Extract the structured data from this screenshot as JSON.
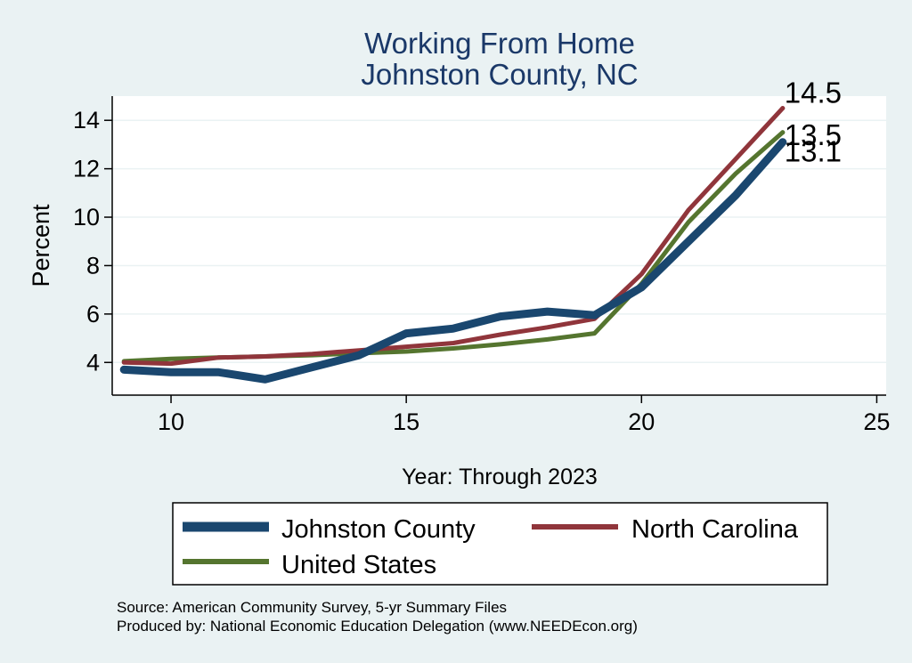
{
  "chart_data": {
    "type": "line",
    "title": [
      "Working From Home",
      "Johnston County, NC"
    ],
    "xlabel": "Year: Through 2023",
    "ylabel": "Percent",
    "xlim": [
      8.75,
      25.2
    ],
    "ylim": [
      2.65,
      15.0
    ],
    "xticks": [
      10,
      15,
      20,
      25
    ],
    "yticks": [
      4,
      6,
      8,
      10,
      12,
      14
    ],
    "grid": "horizontal",
    "legend_position": "bottom",
    "series": [
      {
        "name": "Johnston County",
        "color": "#1a476f",
        "width": 9,
        "x": [
          9,
          10,
          11,
          12,
          13,
          14,
          15,
          16,
          17,
          18,
          19,
          20,
          21,
          22,
          23
        ],
        "y": [
          3.7,
          3.6,
          3.6,
          3.3,
          3.8,
          4.3,
          5.2,
          5.4,
          5.9,
          6.1,
          5.95,
          7.1,
          9.0,
          10.9,
          13.1
        ],
        "end_label": "13.1"
      },
      {
        "name": "North Carolina",
        "color": "#90353b",
        "width": 5,
        "x": [
          9,
          10,
          11,
          12,
          13,
          14,
          15,
          16,
          17,
          18,
          19,
          20,
          21,
          22,
          23
        ],
        "y": [
          4.0,
          3.95,
          4.2,
          4.25,
          4.35,
          4.5,
          4.65,
          4.8,
          5.15,
          5.45,
          5.8,
          7.65,
          10.3,
          12.4,
          14.5
        ],
        "end_label": "14.5"
      },
      {
        "name": "United States",
        "color": "#55752f",
        "width": 5,
        "x": [
          9,
          10,
          11,
          12,
          13,
          14,
          15,
          16,
          17,
          18,
          19,
          20,
          21,
          22,
          23
        ],
        "y": [
          4.05,
          4.15,
          4.2,
          4.25,
          4.3,
          4.38,
          4.45,
          4.58,
          4.75,
          4.95,
          5.2,
          7.25,
          9.8,
          11.8,
          13.5
        ],
        "end_label": "13.5"
      }
    ]
  },
  "source": "Source: American Community Survey, 5-yr Summary Files",
  "producer": "Produced by: National Economic Education Delegation (www.NEEDEcon.org)"
}
